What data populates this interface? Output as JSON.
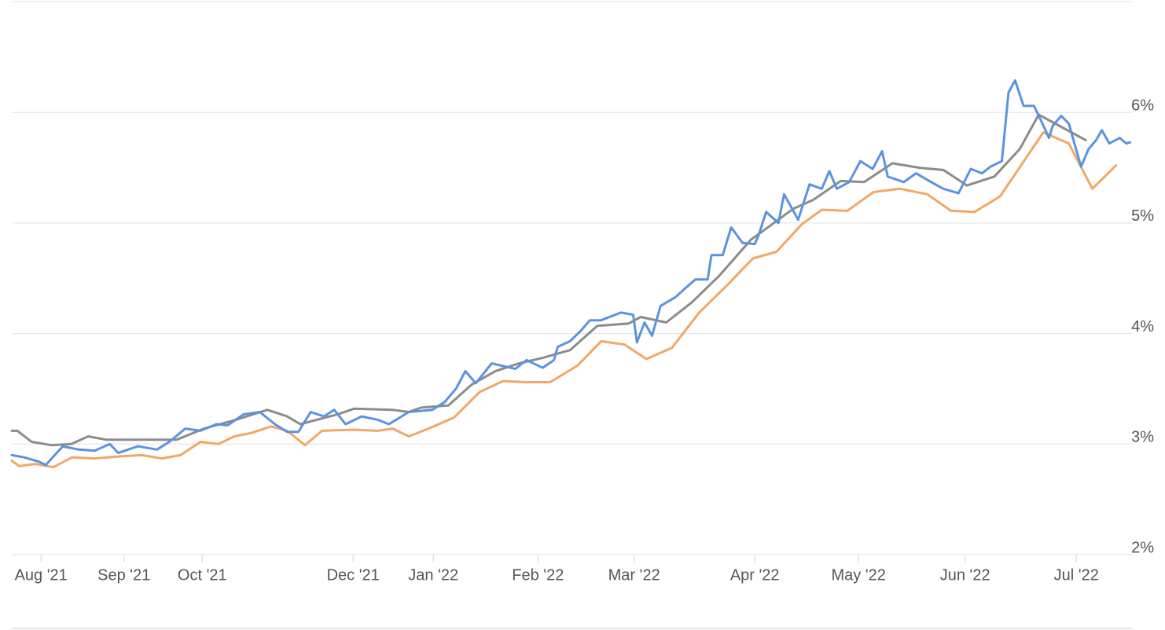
{
  "chart_data": {
    "type": "line",
    "xlim": [
      -0.31,
      11.57
    ],
    "ylim": [
      2,
      7
    ],
    "grid": true,
    "xticks": [
      {
        "value": 0,
        "label": "Aug '21"
      },
      {
        "value": 0.88,
        "label": "Sep '21"
      },
      {
        "value": 1.71,
        "label": "Oct '21"
      },
      {
        "value": 3.31,
        "label": "Dec '21"
      },
      {
        "value": 4.16,
        "label": "Jan '22"
      },
      {
        "value": 5.27,
        "label": "Feb '22"
      },
      {
        "value": 6.29,
        "label": "Mar '22"
      },
      {
        "value": 7.57,
        "label": "Apr '22"
      },
      {
        "value": 8.67,
        "label": "May '22"
      },
      {
        "value": 9.8,
        "label": "Jun '22"
      },
      {
        "value": 10.98,
        "label": "Jul '22"
      }
    ],
    "yticks": [
      {
        "value": 2,
        "label": "2%"
      },
      {
        "value": 3,
        "label": "3%"
      },
      {
        "value": 4,
        "label": "4%"
      },
      {
        "value": 5,
        "label": "5%"
      },
      {
        "value": 6,
        "label": "6%"
      }
    ],
    "series": [
      {
        "color": "#f0a868",
        "x": [
          -0.31,
          -0.23,
          -0.06,
          0.13,
          0.33,
          0.57,
          0.86,
          1.07,
          1.28,
          1.48,
          1.69,
          1.88,
          2.05,
          2.23,
          2.44,
          2.61,
          2.8,
          2.98,
          3.32,
          3.57,
          3.73,
          3.9,
          4.11,
          4.38,
          4.65,
          4.9,
          5.15,
          5.4,
          5.69,
          5.94,
          6.19,
          6.42,
          6.69,
          6.98,
          7.28,
          7.55,
          7.8,
          8.07,
          8.28,
          8.55,
          8.83,
          9.11,
          9.4,
          9.65,
          9.9,
          10.17,
          10.4,
          10.63,
          10.9,
          11.15,
          11.4
        ],
        "values": [
          2.85,
          2.8,
          2.82,
          2.79,
          2.88,
          2.87,
          2.89,
          2.9,
          2.87,
          2.9,
          3.02,
          3.0,
          3.07,
          3.1,
          3.16,
          3.12,
          2.99,
          3.12,
          3.13,
          3.12,
          3.14,
          3.07,
          3.14,
          3.24,
          3.47,
          3.57,
          3.56,
          3.56,
          3.71,
          3.93,
          3.9,
          3.77,
          3.87,
          4.19,
          4.44,
          4.68,
          4.74,
          4.99,
          5.12,
          5.11,
          5.28,
          5.31,
          5.26,
          5.11,
          5.1,
          5.24,
          5.53,
          5.82,
          5.72,
          5.31,
          5.52
        ]
      },
      {
        "color": "#8c8c8c",
        "x": [
          -0.31,
          -0.25,
          -0.1,
          0.11,
          0.32,
          0.5,
          0.69,
          1.44,
          1.73,
          2.07,
          2.4,
          2.61,
          2.75,
          3.15,
          3.32,
          3.73,
          3.9,
          4.03,
          4.32,
          4.57,
          4.82,
          5.07,
          5.32,
          5.61,
          5.9,
          6.23,
          6.36,
          6.63,
          6.9,
          7.19,
          7.53,
          7.82,
          7.98,
          8.19,
          8.48,
          8.73,
          9.03,
          9.32,
          9.57,
          9.82,
          10.11,
          10.38,
          10.58,
          10.82,
          11.08
        ],
        "values": [
          3.12,
          3.12,
          3.02,
          2.99,
          3.0,
          3.07,
          3.04,
          3.04,
          3.14,
          3.22,
          3.31,
          3.25,
          3.18,
          3.27,
          3.32,
          3.31,
          3.29,
          3.33,
          3.35,
          3.54,
          3.66,
          3.73,
          3.78,
          3.85,
          4.07,
          4.09,
          4.15,
          4.1,
          4.28,
          4.52,
          4.85,
          5.03,
          5.13,
          5.21,
          5.38,
          5.37,
          5.54,
          5.5,
          5.48,
          5.34,
          5.42,
          5.67,
          5.98,
          5.87,
          5.75
        ]
      },
      {
        "color": "#5b93e0",
        "x": [
          -0.31,
          -0.18,
          -0.02,
          0.05,
          0.23,
          0.4,
          0.57,
          0.73,
          0.82,
          1.03,
          1.23,
          1.36,
          1.53,
          1.69,
          1.86,
          1.98,
          2.15,
          2.32,
          2.48,
          2.61,
          2.73,
          2.86,
          3.0,
          3.11,
          3.23,
          3.4,
          3.57,
          3.69,
          3.9,
          4.15,
          4.28,
          4.4,
          4.5,
          4.61,
          4.78,
          5.03,
          5.15,
          5.32,
          5.44,
          5.48,
          5.61,
          5.73,
          5.82,
          5.94,
          6.15,
          6.28,
          6.32,
          6.4,
          6.48,
          6.57,
          6.73,
          6.82,
          6.94,
          7.07,
          7.11,
          7.23,
          7.32,
          7.44,
          7.57,
          7.61,
          7.69,
          7.82,
          7.88,
          8.03,
          8.15,
          8.28,
          8.36,
          8.44,
          8.57,
          8.69,
          8.82,
          8.92,
          8.98,
          9.15,
          9.28,
          9.44,
          9.57,
          9.73,
          9.86,
          9.98,
          10.07,
          10.19,
          10.26,
          10.33,
          10.42,
          10.53,
          10.61,
          10.69,
          10.73,
          10.82,
          10.9,
          11.03,
          11.11,
          11.19,
          11.25,
          11.33,
          11.44,
          11.51,
          11.55
        ],
        "values": [
          2.9,
          2.88,
          2.84,
          2.81,
          2.98,
          2.95,
          2.94,
          3.0,
          2.92,
          2.98,
          2.95,
          3.02,
          3.14,
          3.12,
          3.18,
          3.17,
          3.27,
          3.29,
          3.18,
          3.11,
          3.11,
          3.29,
          3.25,
          3.31,
          3.18,
          3.25,
          3.22,
          3.18,
          3.29,
          3.31,
          3.38,
          3.5,
          3.66,
          3.55,
          3.73,
          3.68,
          3.76,
          3.69,
          3.76,
          3.88,
          3.93,
          4.03,
          4.12,
          4.12,
          4.19,
          4.17,
          3.92,
          4.1,
          3.98,
          4.25,
          4.33,
          4.4,
          4.49,
          4.49,
          4.71,
          4.71,
          4.96,
          4.82,
          4.81,
          4.89,
          5.1,
          5.0,
          5.26,
          5.03,
          5.35,
          5.31,
          5.47,
          5.31,
          5.37,
          5.56,
          5.49,
          5.65,
          5.42,
          5.37,
          5.45,
          5.37,
          5.31,
          5.27,
          5.49,
          5.45,
          5.51,
          5.56,
          6.18,
          6.29,
          6.06,
          6.06,
          5.92,
          5.77,
          5.88,
          5.97,
          5.9,
          5.51,
          5.67,
          5.75,
          5.84,
          5.72,
          5.77,
          5.72,
          5.73
        ]
      }
    ]
  }
}
